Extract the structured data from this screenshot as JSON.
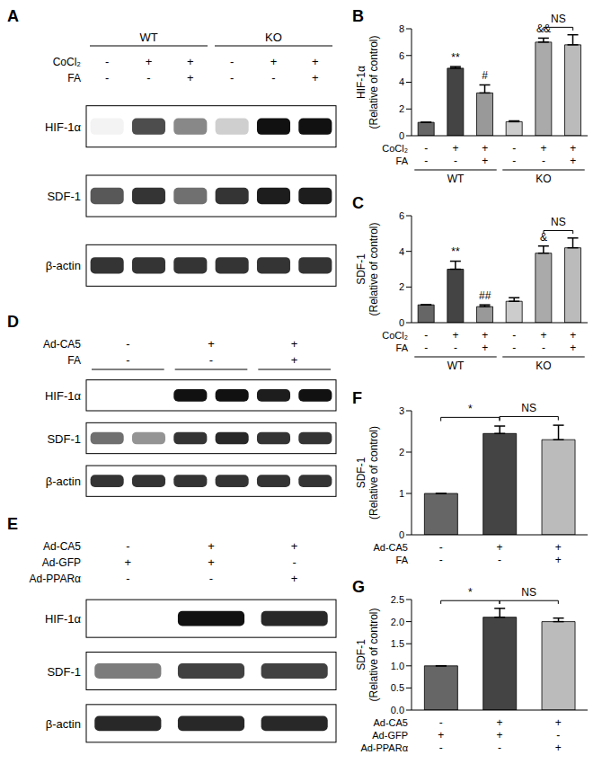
{
  "chart_data": [
    {
      "type": "bar",
      "title": "B",
      "y_label": "HIF-1α\n(Relative of control)",
      "values": [
        1,
        5.05,
        3.2,
        1.05,
        7.0,
        6.8
      ],
      "errors": [
        0,
        0.12,
        0.6,
        0.06,
        0.3,
        0.75
      ],
      "colors": [
        "#666666",
        "#444444",
        "#999999",
        "#cccccc",
        "#aaaaaa",
        "#bbbbbb"
      ],
      "ylim": [
        0,
        8
      ],
      "yticks": [
        0,
        2,
        4,
        6,
        8
      ],
      "treatments": [
        {
          "name": "CoCl₂",
          "values": [
            "-",
            "+",
            "+",
            "-",
            "+",
            "+"
          ]
        },
        {
          "name": "FA",
          "values": [
            "-",
            "-",
            "+",
            "-",
            "-",
            "+"
          ]
        }
      ],
      "groups": [
        {
          "label": "WT",
          "from": 0,
          "to": 2
        },
        {
          "label": "KO",
          "from": 3,
          "to": 5
        }
      ],
      "annotations": [
        {
          "text": "**",
          "index": 1
        },
        {
          "text": "#",
          "index": 2
        },
        {
          "text": "&&",
          "index": 4
        }
      ],
      "brackets": [
        {
          "text": "NS",
          "from": 4,
          "to": 5
        }
      ]
    },
    {
      "type": "bar",
      "title": "C",
      "y_label": "SDF-1\n(Relative of control)",
      "values": [
        1,
        3.0,
        0.9,
        1.2,
        3.9,
        4.2
      ],
      "errors": [
        0,
        0.45,
        0.1,
        0.2,
        0.4,
        0.55
      ],
      "colors": [
        "#666666",
        "#444444",
        "#999999",
        "#cccccc",
        "#aaaaaa",
        "#bbbbbb"
      ],
      "ylim": [
        0,
        6
      ],
      "yticks": [
        0,
        2,
        4,
        6
      ],
      "treatments": [
        {
          "name": "CoCl₂",
          "values": [
            "-",
            "+",
            "+",
            "-",
            "+",
            "+"
          ]
        },
        {
          "name": "FA",
          "values": [
            "-",
            "-",
            "+",
            "-",
            "-",
            "+"
          ]
        }
      ],
      "groups": [
        {
          "label": "WT",
          "from": 0,
          "to": 2
        },
        {
          "label": "KO",
          "from": 3,
          "to": 5
        }
      ],
      "annotations": [
        {
          "text": "**",
          "index": 1
        },
        {
          "text": "##",
          "index": 2
        },
        {
          "text": "&",
          "index": 4
        }
      ],
      "brackets": [
        {
          "text": "NS",
          "from": 4,
          "to": 5
        }
      ]
    },
    {
      "type": "bar",
      "title": "F",
      "y_label": "SDF-1\n(Relative of control)",
      "values": [
        1,
        2.45,
        2.3
      ],
      "errors": [
        0,
        0.18,
        0.35
      ],
      "colors": [
        "#666666",
        "#444444",
        "#bbbbbb"
      ],
      "ylim": [
        0,
        3
      ],
      "yticks": [
        0,
        1,
        2,
        3
      ],
      "treatments": [
        {
          "name": "Ad-CA5",
          "values": [
            "-",
            "+",
            "+"
          ]
        },
        {
          "name": "FA",
          "values": [
            "-",
            "-",
            "+"
          ]
        }
      ],
      "brackets": [
        {
          "text": "*",
          "from": 0,
          "to": 1
        },
        {
          "text": "NS",
          "from": 1,
          "to": 2
        }
      ]
    },
    {
      "type": "bar",
      "title": "G",
      "y_label": "SDF-1\n(Relative of control)",
      "values": [
        1,
        2.1,
        2.0
      ],
      "errors": [
        0,
        0.2,
        0.08
      ],
      "colors": [
        "#666666",
        "#444444",
        "#bbbbbb"
      ],
      "ylim": [
        0,
        2.5
      ],
      "yticks": [
        {
          "value": 0,
          "label": "0.0"
        },
        0.5,
        {
          "value": 1,
          "label": "1.0"
        },
        1.5,
        {
          "value": 2,
          "label": "2.0"
        },
        2.5
      ],
      "treatments": [
        {
          "name": "Ad-CA5",
          "values": [
            "-",
            "+",
            "+"
          ]
        },
        {
          "name": "Ad-GFP",
          "values": [
            "+",
            "+",
            "-"
          ]
        },
        {
          "name": "Ad-PPARα",
          "values": [
            "-",
            "-",
            "+"
          ]
        }
      ],
      "brackets": [
        {
          "text": "*",
          "from": 0,
          "to": 1
        },
        {
          "text": "NS",
          "from": 1,
          "to": 2
        }
      ]
    }
  ],
  "blots": [
    {
      "title": "A",
      "groups": [
        {
          "label": "WT",
          "from": 0,
          "to": 2
        },
        {
          "label": "KO",
          "from": 3,
          "to": 5
        }
      ],
      "treatments": [
        {
          "name": "CoCl₂",
          "values": [
            "-",
            "+",
            "+",
            "-",
            "+",
            "+"
          ]
        },
        {
          "name": "FA",
          "values": [
            "-",
            "-",
            "+",
            "-",
            "-",
            "+"
          ]
        }
      ],
      "bands": [
        {
          "name": "HIF-1α",
          "values": [
            0.05,
            0.75,
            0.5,
            0.2,
            1,
            1
          ]
        },
        {
          "name": "SDF-1",
          "values": [
            0.7,
            0.85,
            0.6,
            0.85,
            0.95,
            0.95
          ]
        },
        {
          "name": "β-actin",
          "values": [
            0.85,
            0.85,
            0.85,
            0.85,
            0.85,
            0.85
          ]
        }
      ]
    },
    {
      "title": "D",
      "treatments": [
        {
          "name": "Ad-CA5",
          "values": [
            "-",
            "+",
            "+"
          ]
        },
        {
          "name": "FA",
          "values": [
            "-",
            "-",
            "+"
          ]
        }
      ],
      "bands": [
        {
          "name": "HIF-1α",
          "values": [
            0,
            0,
            1,
            1,
            0.95,
            1
          ]
        },
        {
          "name": "SDF-1",
          "values": [
            0.6,
            0.45,
            0.85,
            0.9,
            0.85,
            0.85
          ]
        },
        {
          "name": "β-actin",
          "values": [
            0.85,
            0.85,
            0.85,
            0.85,
            0.85,
            0.85
          ]
        }
      ]
    },
    {
      "title": "E",
      "treatments": [
        {
          "name": "Ad-CA5",
          "values": [
            "-",
            "+",
            "+"
          ]
        },
        {
          "name": "Ad-GFP",
          "values": [
            "+",
            "+",
            "-"
          ]
        },
        {
          "name": "Ad-PPARα",
          "values": [
            "-",
            "-",
            "+"
          ]
        }
      ],
      "bands": [
        {
          "name": "HIF-1α",
          "values": [
            0,
            1,
            0.9
          ]
        },
        {
          "name": "SDF-1",
          "values": [
            0.55,
            0.8,
            0.8
          ]
        },
        {
          "name": "β-actin",
          "values": [
            0.9,
            0.9,
            0.9
          ]
        }
      ]
    }
  ]
}
